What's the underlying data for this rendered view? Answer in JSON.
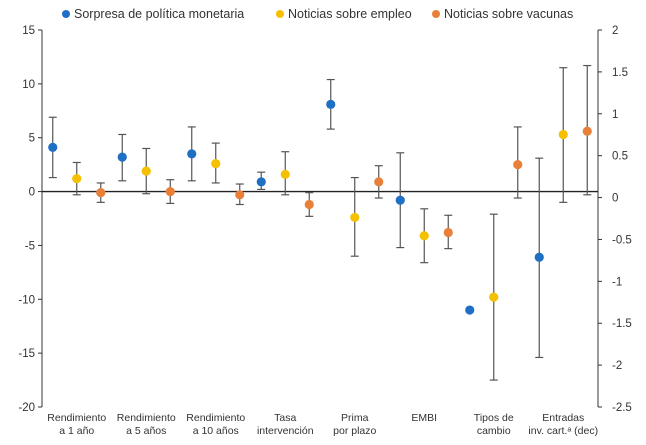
{
  "chart_data": {
    "type": "scatter",
    "categories": [
      [
        "Rendimiento",
        "a 1 año"
      ],
      [
        "Rendimiento",
        "a 5 años"
      ],
      [
        "Rendimiento",
        "a 10 años"
      ],
      [
        "Tasa",
        "intervención"
      ],
      [
        "Prima",
        "por plazo"
      ],
      [
        "EMBI"
      ],
      [
        "Tipos de",
        "cambio"
      ],
      [
        "Entradas",
        "inv. cart.ᵃ (dec)"
      ]
    ],
    "y_left": {
      "min": -20,
      "max": 15,
      "ticks": [
        "15",
        "10",
        "5",
        "0",
        "-5",
        "-10",
        "-15",
        "-20"
      ]
    },
    "y_right": {
      "min": -2.5,
      "max": 2,
      "ticks": [
        "2",
        "1.5",
        "1",
        "0.5",
        "0",
        "-0.5",
        "-1",
        "-1.5",
        "-2",
        "-2.5"
      ]
    },
    "series": [
      {
        "name": "Sorpresa de política monetaria",
        "color": "#1f6fc5",
        "points": [
          {
            "y": 4.1,
            "lo": 1.3,
            "hi": 6.9
          },
          {
            "y": 3.2,
            "lo": 1.0,
            "hi": 5.3
          },
          {
            "y": 3.5,
            "lo": 1.0,
            "hi": 6.0
          },
          {
            "y": 0.9,
            "lo": 0.2,
            "hi": 1.8
          },
          {
            "y": 8.1,
            "lo": 5.8,
            "hi": 10.4
          },
          {
            "y": -0.8,
            "lo": -5.2,
            "hi": 3.6
          },
          {
            "y": -11.0,
            "lo": null,
            "hi": null
          },
          {
            "y": -6.1,
            "lo": -15.4,
            "hi": 3.1
          }
        ]
      },
      {
        "name": "Noticias sobre empleo",
        "color": "#f5c000",
        "points": [
          {
            "y": 1.2,
            "lo": -0.3,
            "hi": 2.7
          },
          {
            "y": 1.9,
            "lo": -0.2,
            "hi": 4.0
          },
          {
            "y": 2.6,
            "lo": 0.8,
            "hi": 4.5
          },
          {
            "y": 1.6,
            "lo": -0.3,
            "hi": 3.7
          },
          {
            "y": -2.4,
            "lo": -6.0,
            "hi": 1.3
          },
          {
            "y": -4.1,
            "lo": -6.6,
            "hi": -1.6
          },
          {
            "y": -9.8,
            "lo": -17.5,
            "hi": -2.1
          },
          {
            "y": 5.3,
            "lo": -1.0,
            "hi": 11.5
          }
        ]
      },
      {
        "name": "Noticias sobre vacunas",
        "color": "#e8803a",
        "points": [
          {
            "y": -0.1,
            "lo": -1.0,
            "hi": 0.8
          },
          {
            "y": 0.0,
            "lo": -1.1,
            "hi": 1.1
          },
          {
            "y": -0.3,
            "lo": -1.2,
            "hi": 0.7
          },
          {
            "y": -1.2,
            "lo": -2.3,
            "hi": -0.1
          },
          {
            "y": 0.9,
            "lo": -0.6,
            "hi": 2.4
          },
          {
            "y": -3.8,
            "lo": -5.3,
            "hi": -2.2
          },
          {
            "y": 2.5,
            "lo": -0.6,
            "hi": 6.0
          },
          {
            "y": 5.6,
            "lo": -0.3,
            "hi": 11.7
          }
        ]
      }
    ],
    "legend_position": "top",
    "grid": false
  }
}
